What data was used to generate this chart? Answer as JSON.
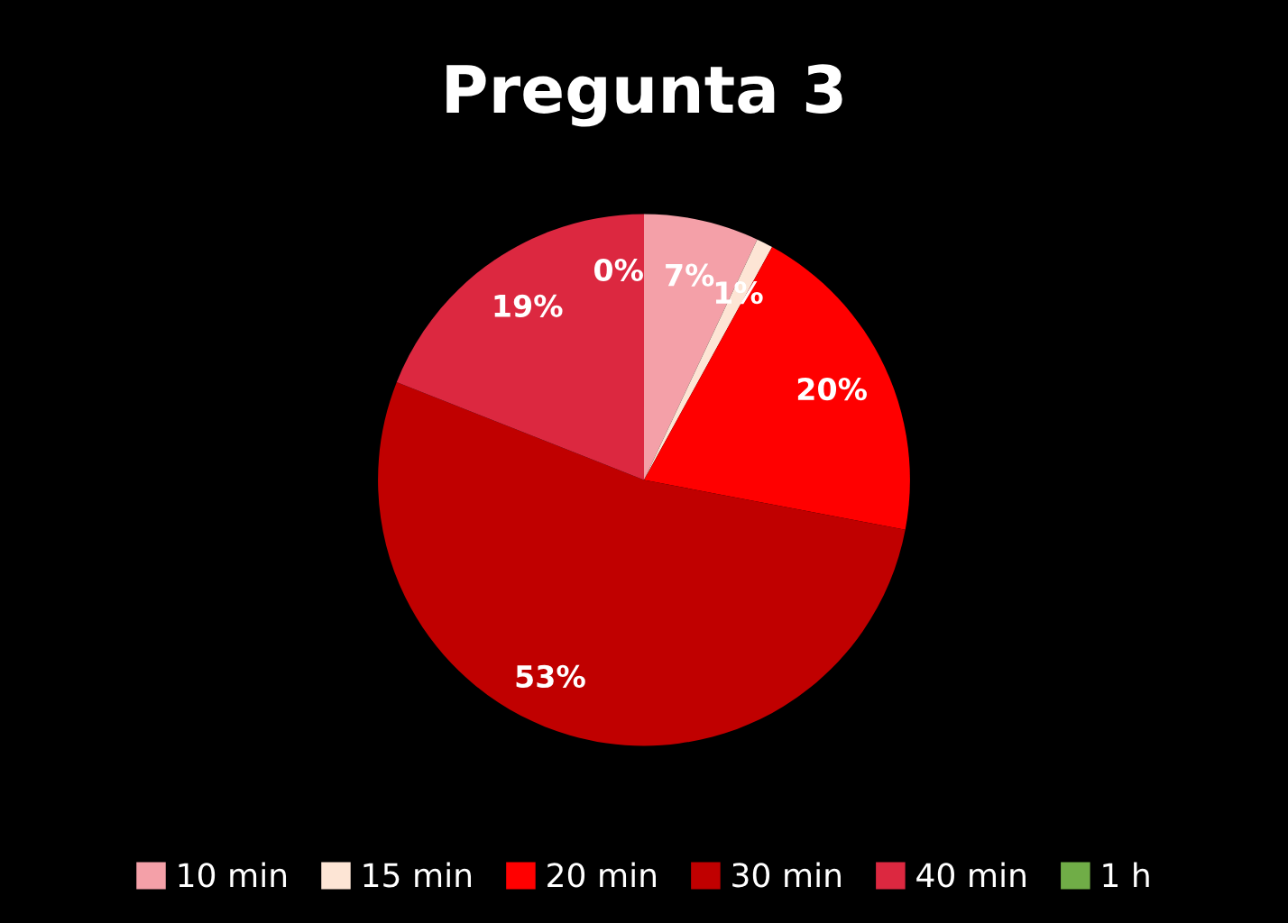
{
  "chart_data": {
    "type": "pie",
    "title": "Pregunta 3",
    "categories": [
      "10 min",
      "15 min",
      "20 min",
      "30 min",
      "40 min",
      "1 h"
    ],
    "values": [
      7,
      1,
      20,
      53,
      19,
      0
    ],
    "colors": [
      "#f4a0a8",
      "#fde5d5",
      "#ff0000",
      "#c00000",
      "#dc2840",
      "#70ad47"
    ],
    "value_labels": [
      "7%",
      "1%",
      "20%",
      "53%",
      "19%",
      "0%"
    ],
    "legend": "bottom"
  }
}
